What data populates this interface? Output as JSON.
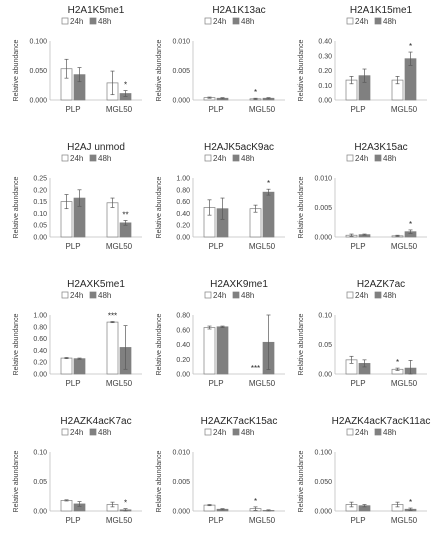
{
  "colors": {
    "h24": "#ffffff",
    "h48": "#808080",
    "bar_border": "#7f7f7f",
    "axis": "#bfbfbf",
    "text": "#404040"
  },
  "chart_data": [
    {
      "type": "bar",
      "title": "H2A1K5me1",
      "ylabel": "Relative abundance",
      "ylim": [
        0,
        0.1
      ],
      "yticks": [
        "0.000",
        "0.050",
        "0.100"
      ],
      "categories": [
        "PLP",
        "MGL50"
      ],
      "series": [
        {
          "name": "24h",
          "values": [
            0.053,
            0.029
          ],
          "err": [
            0.016,
            0.02
          ]
        },
        {
          "name": "48h",
          "values": [
            0.043,
            0.011
          ],
          "err": [
            0.012,
            0.005
          ]
        }
      ],
      "annotations": [
        {
          "category": "MGL50",
          "series": "48h",
          "text": "*"
        }
      ]
    },
    {
      "type": "bar",
      "title": "H2A1K13ac",
      "ylabel": "Relative abundance",
      "ylim": [
        0,
        0.01
      ],
      "yticks": [
        "0.000",
        "0.005",
        "0.010"
      ],
      "categories": [
        "PLP",
        "MGL50"
      ],
      "series": [
        {
          "name": "24h",
          "values": [
            0.0004,
            0.0002
          ],
          "err": [
            0.0001,
            0.0001
          ]
        },
        {
          "name": "48h",
          "values": [
            0.0003,
            0.0003
          ],
          "err": [
            0.0001,
            0.0001
          ]
        }
      ],
      "annotations": [
        {
          "category": "MGL50",
          "series": "24h",
          "text": "*"
        }
      ]
    },
    {
      "type": "bar",
      "title": "H2A1K15me1",
      "ylabel": "Relative abundance",
      "ylim": [
        0,
        0.4
      ],
      "yticks": [
        "0.00",
        "0.10",
        "0.20",
        "0.30",
        "0.40"
      ],
      "categories": [
        "PLP",
        "MGL50"
      ],
      "series": [
        {
          "name": "24h",
          "values": [
            0.135,
            0.135
          ],
          "err": [
            0.025,
            0.025
          ]
        },
        {
          "name": "48h",
          "values": [
            0.165,
            0.28
          ],
          "err": [
            0.045,
            0.045
          ]
        }
      ],
      "annotations": [
        {
          "category": "MGL50",
          "series": "48h",
          "text": "*"
        }
      ]
    },
    {
      "type": "bar",
      "title": "H2AJ unmod",
      "ylabel": "Relative abundance",
      "ylim": [
        0,
        0.25
      ],
      "yticks": [
        "0.00",
        "0.05",
        "0.10",
        "0.15",
        "0.20",
        "0.25"
      ],
      "categories": [
        "PLP",
        "MGL50"
      ],
      "series": [
        {
          "name": "24h",
          "values": [
            0.15,
            0.145
          ],
          "err": [
            0.03,
            0.02
          ]
        },
        {
          "name": "48h",
          "values": [
            0.165,
            0.06
          ],
          "err": [
            0.035,
            0.01
          ]
        }
      ],
      "annotations": [
        {
          "category": "MGL50",
          "series": "48h",
          "text": "**"
        }
      ]
    },
    {
      "type": "bar",
      "title": "H2AJK5acK9ac",
      "ylabel": "Relative abundance",
      "ylim": [
        0,
        1.0
      ],
      "yticks": [
        "0.00",
        "0.20",
        "0.40",
        "0.60",
        "0.80",
        "1.00"
      ],
      "categories": [
        "PLP",
        "MGL50"
      ],
      "series": [
        {
          "name": "24h",
          "values": [
            0.5,
            0.48
          ],
          "err": [
            0.13,
            0.06
          ]
        },
        {
          "name": "48h",
          "values": [
            0.48,
            0.76
          ],
          "err": [
            0.18,
            0.05
          ]
        }
      ],
      "annotations": [
        {
          "category": "MGL50",
          "series": "48h",
          "text": "*"
        }
      ]
    },
    {
      "type": "bar",
      "title": "H2A3K15ac",
      "ylabel": "Relative abundance",
      "ylim": [
        0,
        0.01
      ],
      "yticks": [
        "0.000",
        "0.005",
        "0.010"
      ],
      "categories": [
        "PLP",
        "MGL50"
      ],
      "series": [
        {
          "name": "24h",
          "values": [
            0.0003,
            0.0002
          ],
          "err": [
            0.0002,
            0.0001
          ]
        },
        {
          "name": "48h",
          "values": [
            0.0004,
            0.0009
          ],
          "err": [
            0.0001,
            0.0003
          ]
        }
      ],
      "annotations": [
        {
          "category": "MGL50",
          "series": "48h",
          "text": "*"
        }
      ]
    },
    {
      "type": "bar",
      "title": "H2AXK5me1",
      "ylabel": "Relative abundance",
      "ylim": [
        0,
        1.0
      ],
      "yticks": [
        "0.00",
        "0.20",
        "0.40",
        "0.60",
        "0.80",
        "1.00"
      ],
      "categories": [
        "PLP",
        "MGL50"
      ],
      "series": [
        {
          "name": "24h",
          "values": [
            0.27,
            0.88
          ],
          "err": [
            0.01,
            0.01
          ]
        },
        {
          "name": "48h",
          "values": [
            0.26,
            0.45
          ],
          "err": [
            0.01,
            0.37
          ]
        }
      ],
      "annotations": [
        {
          "category": "MGL50",
          "series": "24h",
          "text": "***"
        }
      ]
    },
    {
      "type": "bar",
      "title": "H2AXK9me1",
      "ylabel": "Relative abundance",
      "ylim": [
        0,
        0.8
      ],
      "yticks": [
        "0.00",
        "0.20",
        "0.40",
        "0.60",
        "0.80"
      ],
      "categories": [
        "PLP",
        "MGL50"
      ],
      "series": [
        {
          "name": "24h",
          "values": [
            0.63,
            0.0
          ],
          "err": [
            0.02,
            0.0
          ]
        },
        {
          "name": "48h",
          "values": [
            0.64,
            0.43
          ],
          "err": [
            0.01,
            0.37
          ]
        }
      ],
      "annotations": [
        {
          "category": "MGL50",
          "series": "24h",
          "text": "***"
        }
      ]
    },
    {
      "type": "bar",
      "title": "H2AZK7ac",
      "ylabel": "Relative abundance",
      "ylim": [
        0,
        0.1
      ],
      "yticks": [
        "0.00",
        "0.05",
        "0.10"
      ],
      "categories": [
        "PLP",
        "MGL50"
      ],
      "series": [
        {
          "name": "24h",
          "values": [
            0.024,
            0.008
          ],
          "err": [
            0.006,
            0.002
          ]
        },
        {
          "name": "48h",
          "values": [
            0.018,
            0.01
          ],
          "err": [
            0.006,
            0.013
          ]
        }
      ],
      "annotations": [
        {
          "category": "MGL50",
          "series": "24h",
          "text": "*"
        }
      ]
    },
    {
      "type": "bar",
      "title": "H2AZK4acK7ac",
      "ylabel": "Relative abundance",
      "ylim": [
        0,
        0.1
      ],
      "yticks": [
        "0.00",
        "0.05",
        "0.10"
      ],
      "categories": [
        "PLP",
        "MGL50"
      ],
      "series": [
        {
          "name": "24h",
          "values": [
            0.018,
            0.011
          ],
          "err": [
            0.001,
            0.004
          ]
        },
        {
          "name": "48h",
          "values": [
            0.012,
            0.002
          ],
          "err": [
            0.004,
            0.002
          ]
        }
      ],
      "annotations": [
        {
          "category": "MGL50",
          "series": "48h",
          "text": "*"
        }
      ]
    },
    {
      "type": "bar",
      "title": "H2AZK7acK15ac",
      "ylabel": "Relative abundance",
      "ylim": [
        0,
        0.01
      ],
      "yticks": [
        "0.000",
        "0.005",
        "0.010"
      ],
      "categories": [
        "PLP",
        "MGL50"
      ],
      "series": [
        {
          "name": "24h",
          "values": [
            0.001,
            0.0004
          ],
          "err": [
            0.0001,
            0.0003
          ]
        },
        {
          "name": "48h",
          "values": [
            0.0003,
            0.0001
          ],
          "err": [
            0.0001,
            0.0001
          ]
        }
      ],
      "annotations": [
        {
          "category": "MGL50",
          "series": "24h",
          "text": "*"
        }
      ]
    },
    {
      "type": "bar",
      "title": "H2AZK4acK7acK11ac",
      "ylabel": "Relative abundance",
      "ylim": [
        0,
        0.1
      ],
      "yticks": [
        "0.000",
        "0.050",
        "0.100"
      ],
      "categories": [
        "PLP",
        "MGL50"
      ],
      "series": [
        {
          "name": "24h",
          "values": [
            0.011,
            0.011
          ],
          "err": [
            0.004,
            0.004
          ]
        },
        {
          "name": "48h",
          "values": [
            0.009,
            0.003
          ],
          "err": [
            0.002,
            0.002
          ]
        }
      ],
      "annotations": [
        {
          "category": "MGL50",
          "series": "48h",
          "text": "*"
        }
      ]
    }
  ]
}
